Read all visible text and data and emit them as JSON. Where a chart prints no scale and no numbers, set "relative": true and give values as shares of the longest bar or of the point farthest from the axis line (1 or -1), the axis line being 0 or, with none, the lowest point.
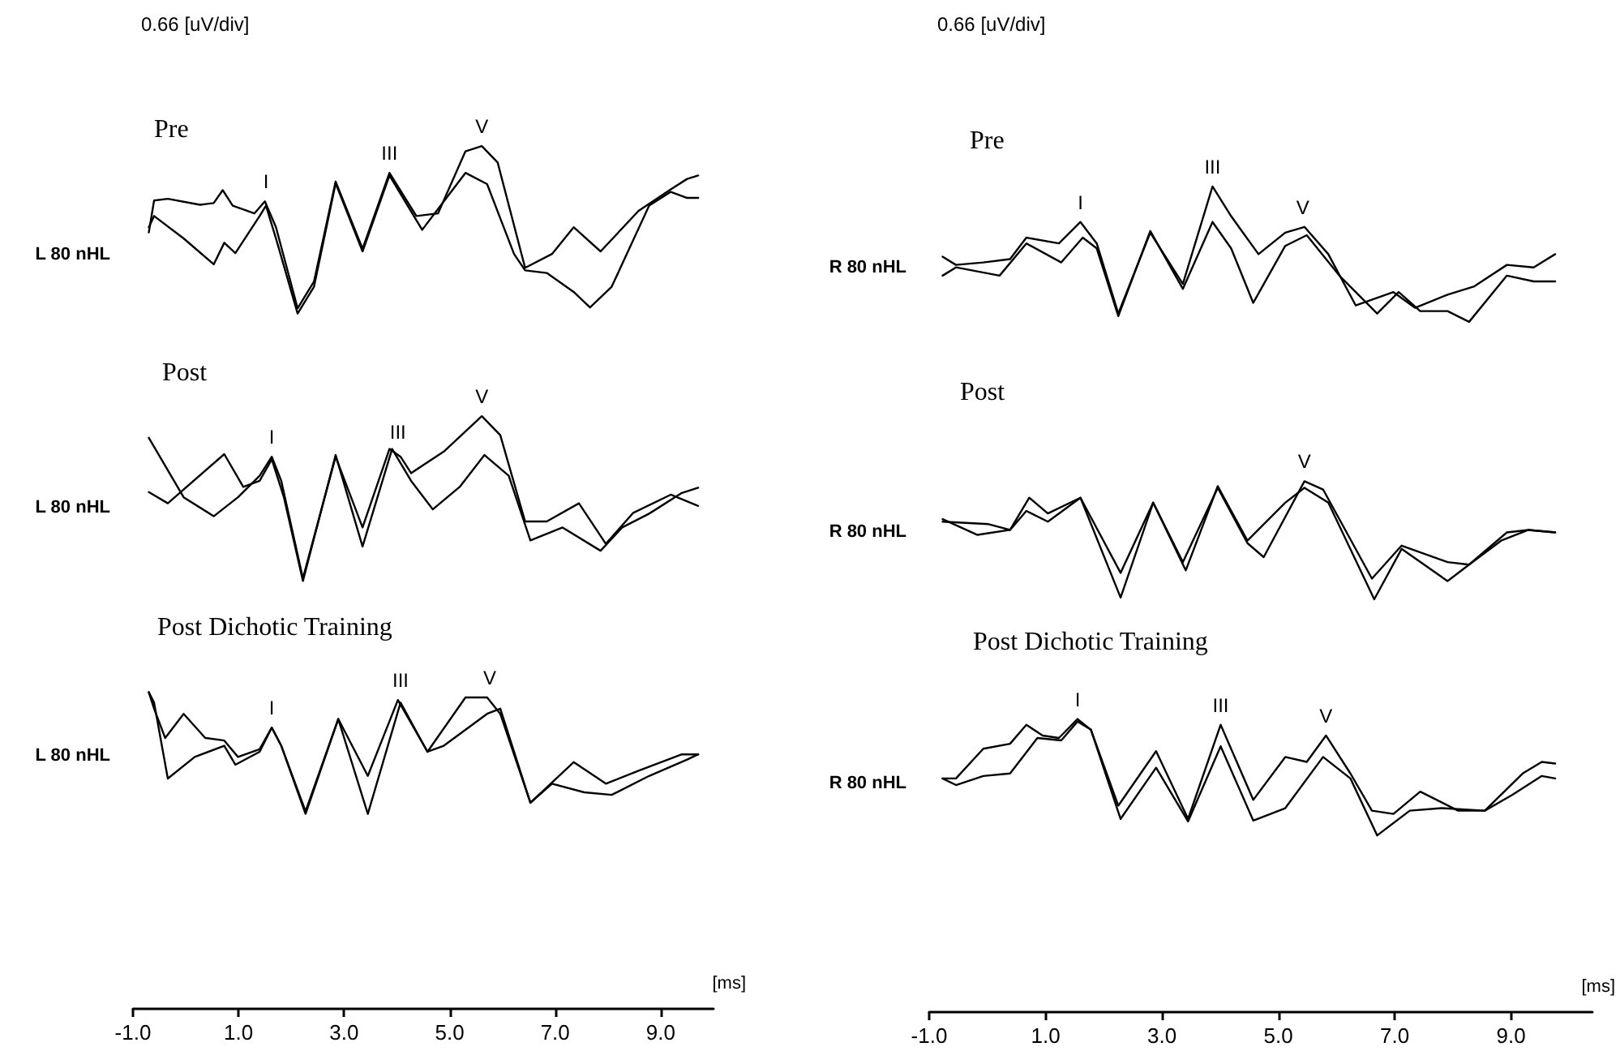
{
  "chart_data": [
    {
      "type": "line",
      "relative": true,
      "marker": "none",
      "ylabel": "0.66 [uV/div]",
      "xlabel": "[ms]",
      "xlim": [
        -1,
        10
      ],
      "xticks": [
        {
          "value": -1,
          "label": "-1.0"
        },
        {
          "value": 1,
          "label": "1.0"
        },
        {
          "value": 3,
          "label": "3.0"
        },
        {
          "value": 5,
          "label": "5.0"
        },
        {
          "value": 7,
          "label": "7.0"
        },
        {
          "value": 9,
          "label": "9.0"
        }
      ],
      "series": [
        {
          "color": "#000000",
          "x": [
            -0.7,
            -0.6,
            -0.34,
            0.27,
            0.53,
            0.7,
            0.89,
            1.3,
            1.5,
            1.71,
            2.12,
            2.43,
            2.84,
            3.35,
            3.86,
            4.37,
            4.78,
            5.3,
            5.61,
            5.91,
            6.43,
            6.94,
            7.35,
            7.86,
            8.58,
            9.19,
            9.5,
            9.71
          ],
          "values": [
            0.9,
            0.937,
            0.939,
            0.932,
            0.934,
            0.949,
            0.931,
            0.922,
            0.936,
            0.906,
            0.812,
            0.843,
            0.959,
            0.881,
            0.969,
            0.919,
            0.922,
            0.994,
            1.0,
            0.981,
            0.859,
            0.875,
            0.906,
            0.878,
            0.925,
            0.95,
            0.962,
            0.966
          ]
        },
        {
          "color": "#000000",
          "x": [
            -0.7,
            -0.6,
            -0.04,
            0.53,
            0.73,
            0.94,
            1.4,
            1.52,
            1.71,
            2.12,
            2.43,
            2.84,
            3.35,
            3.86,
            4.48,
            5.3,
            5.71,
            6.22,
            6.43,
            6.84,
            7.35,
            7.66,
            8.07,
            8.78,
            9.19,
            9.5,
            9.71
          ],
          "values": [
            0.906,
            0.919,
            0.893,
            0.863,
            0.888,
            0.876,
            0.919,
            0.931,
            0.893,
            0.806,
            0.837,
            0.957,
            0.878,
            0.966,
            0.903,
            0.969,
            0.956,
            0.875,
            0.856,
            0.853,
            0.831,
            0.813,
            0.837,
            0.931,
            0.947,
            0.94,
            0.94
          ]
        },
        {
          "color": "#000000",
          "x": [
            -0.7,
            -0.04,
            0.53,
            0.99,
            1.4,
            1.63,
            1.81,
            2.22,
            2.84,
            3.35,
            3.86,
            4.07,
            4.27,
            4.89,
            5.61,
            5.96,
            6.43,
            6.84,
            7.45,
            7.96,
            8.48,
            9.19,
            9.71
          ],
          "values": [
            0.662,
            0.593,
            0.571,
            0.593,
            0.618,
            0.64,
            0.612,
            0.499,
            0.64,
            0.558,
            0.649,
            0.64,
            0.621,
            0.646,
            0.687,
            0.665,
            0.565,
            0.565,
            0.586,
            0.539,
            0.575,
            0.596,
            0.583
          ]
        },
        {
          "color": "#000000",
          "x": [
            -0.7,
            -0.34,
            0.73,
            1.09,
            1.4,
            1.63,
            1.86,
            2.22,
            2.84,
            3.35,
            3.91,
            4.27,
            4.68,
            5.19,
            5.66,
            6.12,
            6.53,
            7.14,
            7.86,
            8.27,
            8.78,
            9.4,
            9.71
          ],
          "values": [
            0.599,
            0.586,
            0.643,
            0.605,
            0.612,
            0.637,
            0.593,
            0.496,
            0.642,
            0.536,
            0.649,
            0.612,
            0.579,
            0.605,
            0.642,
            0.618,
            0.543,
            0.558,
            0.531,
            0.558,
            0.574,
            0.598,
            0.604
          ]
        },
        {
          "color": "#000000",
          "x": [
            -0.7,
            -0.6,
            -0.39,
            -0.04,
            0.37,
            0.73,
            0.99,
            1.4,
            1.63,
            1.81,
            2.27,
            2.89,
            3.45,
            4.02,
            4.58,
            5.3,
            5.71,
            5.96,
            6.53,
            7.35,
            7.96,
            8.58,
            9.4,
            9.71
          ],
          "values": [
            0.367,
            0.348,
            0.314,
            0.342,
            0.314,
            0.311,
            0.292,
            0.301,
            0.326,
            0.305,
            0.229,
            0.336,
            0.27,
            0.358,
            0.298,
            0.361,
            0.361,
            0.342,
            0.239,
            0.286,
            0.261,
            0.276,
            0.295,
            0.295
          ]
        },
        {
          "color": "#000000",
          "x": [
            -0.7,
            -0.6,
            -0.34,
            0.17,
            0.73,
            0.94,
            1.4,
            1.63,
            1.81,
            2.27,
            2.89,
            3.45,
            4.07,
            4.58,
            4.89,
            5.71,
            5.96,
            6.53,
            6.94,
            7.55,
            8.07,
            8.78,
            9.5,
            9.71
          ],
          "values": [
            0.367,
            0.355,
            0.267,
            0.292,
            0.305,
            0.283,
            0.298,
            0.326,
            0.305,
            0.226,
            0.336,
            0.226,
            0.355,
            0.298,
            0.305,
            0.342,
            0.348,
            0.239,
            0.261,
            0.251,
            0.248,
            0.27,
            0.289,
            0.295
          ]
        }
      ],
      "annotations": [
        "Pre",
        "Post",
        "Post Dichotic Training",
        {
          "text": "I",
          "x": 1.52,
          "y": 0.936
        },
        {
          "text": "III",
          "x": 3.86,
          "y": 0.969
        },
        {
          "text": "V",
          "x": 5.61,
          "y": 1.0
        },
        {
          "text": "I",
          "x": 1.63,
          "y": 0.64
        },
        {
          "text": "III",
          "x": 4.02,
          "y": 0.646
        },
        {
          "text": "V",
          "x": 5.61,
          "y": 0.687
        },
        {
          "text": "I",
          "x": 1.63,
          "y": 0.326
        },
        {
          "text": "III",
          "x": 4.07,
          "y": 0.358
        },
        {
          "text": "V",
          "x": 5.76,
          "y": 0.361
        },
        "L 80 nHL",
        "L 80 nHL",
        "L 80 nHL"
      ]
    },
    {
      "type": "line",
      "relative": true,
      "marker": "none",
      "ylabel": "0.66 [uV/div]",
      "xlabel": "[ms]",
      "xlim": [
        -1,
        10.4
      ],
      "xticks": [
        {
          "value": -1,
          "label": "-1.0"
        },
        {
          "value": 1,
          "label": "1.0"
        },
        {
          "value": 3,
          "label": "3.0"
        },
        {
          "value": 5,
          "label": "5.0"
        },
        {
          "value": 7,
          "label": "7.0"
        },
        {
          "value": 9,
          "label": "9.0"
        }
      ],
      "series": [
        {
          "color": "#000000",
          "x": [
            -0.77,
            -0.54,
            -0.07,
            0.39,
            0.67,
            1.23,
            1.6,
            1.88,
            2.25,
            2.8,
            3.36,
            3.87,
            4.19,
            4.66,
            5.12,
            5.45,
            5.86,
            6.33,
            6.98,
            7.35,
            7.91,
            8.37,
            8.93,
            9.39,
            9.76
          ],
          "values": [
            0.915,
            0.905,
            0.908,
            0.912,
            0.938,
            0.931,
            0.957,
            0.931,
            0.846,
            0.944,
            0.882,
            1.0,
            0.964,
            0.918,
            0.944,
            0.951,
            0.918,
            0.856,
            0.872,
            0.853,
            0.869,
            0.879,
            0.905,
            0.902,
            0.918
          ]
        },
        {
          "color": "#000000",
          "x": [
            -0.77,
            -0.54,
            0.21,
            0.67,
            1.27,
            1.64,
            1.88,
            2.25,
            2.8,
            3.36,
            3.87,
            4.19,
            4.57,
            5.12,
            5.49,
            6.05,
            6.7,
            7.07,
            7.44,
            7.91,
            8.28,
            8.93,
            9.39,
            9.76
          ],
          "values": [
            0.892,
            0.902,
            0.892,
            0.931,
            0.908,
            0.938,
            0.925,
            0.843,
            0.946,
            0.876,
            0.957,
            0.925,
            0.859,
            0.928,
            0.941,
            0.892,
            0.846,
            0.872,
            0.849,
            0.849,
            0.836,
            0.892,
            0.885,
            0.885
          ]
        },
        {
          "color": "#000000",
          "x": [
            -0.77,
            -0.17,
            0.39,
            0.72,
            1.04,
            1.6,
            2.29,
            2.85,
            3.36,
            3.96,
            4.47,
            4.75,
            5.45,
            5.77,
            6.61,
            7.12,
            7.91,
            8.28,
            8.93,
            9.3,
            9.76
          ],
          "values": [
            0.597,
            0.578,
            0.584,
            0.623,
            0.604,
            0.623,
            0.532,
            0.617,
            0.545,
            0.635,
            0.568,
            0.551,
            0.643,
            0.633,
            0.525,
            0.565,
            0.545,
            0.542,
            0.581,
            0.584,
            0.581
          ]
        },
        {
          "color": "#000000",
          "x": [
            -0.77,
            0.02,
            0.39,
            0.67,
            1.04,
            1.6,
            2.29,
            2.85,
            3.41,
            3.96,
            4.47,
            5.12,
            5.45,
            5.86,
            6.65,
            7.12,
            7.91,
            8.28,
            8.83,
            9.3,
            9.76
          ],
          "values": [
            0.594,
            0.591,
            0.584,
            0.607,
            0.594,
            0.623,
            0.502,
            0.617,
            0.535,
            0.637,
            0.571,
            0.617,
            0.635,
            0.617,
            0.5,
            0.561,
            0.522,
            0.542,
            0.571,
            0.584,
            0.581
          ]
        },
        {
          "color": "#000000",
          "x": [
            -0.77,
            -0.54,
            -0.07,
            0.39,
            0.67,
            0.95,
            1.23,
            1.55,
            1.78,
            2.25,
            2.9,
            3.45,
            4.01,
            4.57,
            5.12,
            5.49,
            5.82,
            6.24,
            6.61,
            6.98,
            7.44,
            8.09,
            8.55,
            9.2,
            9.53,
            9.76
          ],
          "values": [
            0.283,
            0.283,
            0.319,
            0.325,
            0.348,
            0.335,
            0.332,
            0.355,
            0.342,
            0.25,
            0.316,
            0.234,
            0.348,
            0.257,
            0.309,
            0.303,
            0.335,
            0.289,
            0.244,
            0.24,
            0.267,
            0.244,
            0.244,
            0.289,
            0.303,
            0.301
          ]
        },
        {
          "color": "#000000",
          "x": [
            -0.77,
            -0.54,
            -0.07,
            0.39,
            0.86,
            1.27,
            1.55,
            1.78,
            2.29,
            2.9,
            3.45,
            4.01,
            4.57,
            5.12,
            5.77,
            6.24,
            6.7,
            7.26,
            7.81,
            8.55,
            9.02,
            9.53,
            9.76
          ],
          "values": [
            0.283,
            0.275,
            0.286,
            0.289,
            0.332,
            0.329,
            0.352,
            0.342,
            0.234,
            0.296,
            0.231,
            0.322,
            0.232,
            0.247,
            0.309,
            0.283,
            0.214,
            0.244,
            0.247,
            0.244,
            0.263,
            0.286,
            0.283
          ]
        }
      ],
      "annotations": [
        "Pre",
        "Post",
        "Post Dichotic Training",
        {
          "text": "I",
          "x": 1.6,
          "y": 0.957
        },
        {
          "text": "III",
          "x": 3.87,
          "y": 1.0
        },
        {
          "text": "V",
          "x": 5.42,
          "y": 0.951
        },
        {
          "text": "V",
          "x": 5.45,
          "y": 0.643
        },
        {
          "text": "I",
          "x": 1.55,
          "y": 0.355
        },
        {
          "text": "III",
          "x": 4.01,
          "y": 0.348
        },
        {
          "text": "V",
          "x": 5.82,
          "y": 0.335
        },
        "R 80 nHL",
        "R 80 nHL",
        "R 80 nHL"
      ]
    }
  ]
}
